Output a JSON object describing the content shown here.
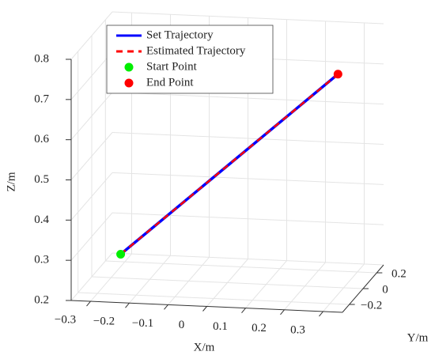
{
  "chart_data": {
    "type": "line3d",
    "xlabel": "X/m",
    "ylabel": "Y/m",
    "zlabel": "Z/m",
    "xlim": [
      -0.35,
      0.35
    ],
    "ylim": [
      -0.3,
      0.3
    ],
    "zlim": [
      0.2,
      0.8
    ],
    "xticks": [
      {
        "value": -0.3,
        "label": "−0.3"
      },
      {
        "value": -0.2,
        "label": "−0.2"
      },
      {
        "value": -0.1,
        "label": "−0.1"
      },
      0,
      0.1,
      0.2,
      0.3
    ],
    "yticks": [
      {
        "value": -0.2,
        "label": "−0.2"
      },
      0,
      0.2
    ],
    "zticks": [
      0.2,
      0.3,
      0.4,
      0.5,
      0.6,
      0.7,
      0.8
    ],
    "grid": true,
    "legend": "upper left",
    "series": [
      {
        "name": "Set Trajectory",
        "color": "#0000ff",
        "mode": "line",
        "dash": "solid",
        "x": [
          -0.24,
          0.25
        ],
        "y": [
          -0.2,
          0.2
        ],
        "z": [
          0.3,
          0.69
        ]
      },
      {
        "name": "Estimated Trajectory",
        "color": "#ff0000",
        "mode": "line",
        "dash": "dashed",
        "x": [
          -0.24,
          0.25
        ],
        "y": [
          -0.2,
          0.2
        ],
        "z": [
          0.3,
          0.69
        ]
      },
      {
        "name": "Start Point",
        "color": "#00ee00",
        "mode": "marker",
        "x": [
          -0.24
        ],
        "y": [
          -0.2
        ],
        "z": [
          0.3
        ]
      },
      {
        "name": "End Point",
        "color": "#ff0000",
        "mode": "marker",
        "x": [
          0.25
        ],
        "y": [
          0.2
        ],
        "z": [
          0.69
        ]
      }
    ]
  }
}
